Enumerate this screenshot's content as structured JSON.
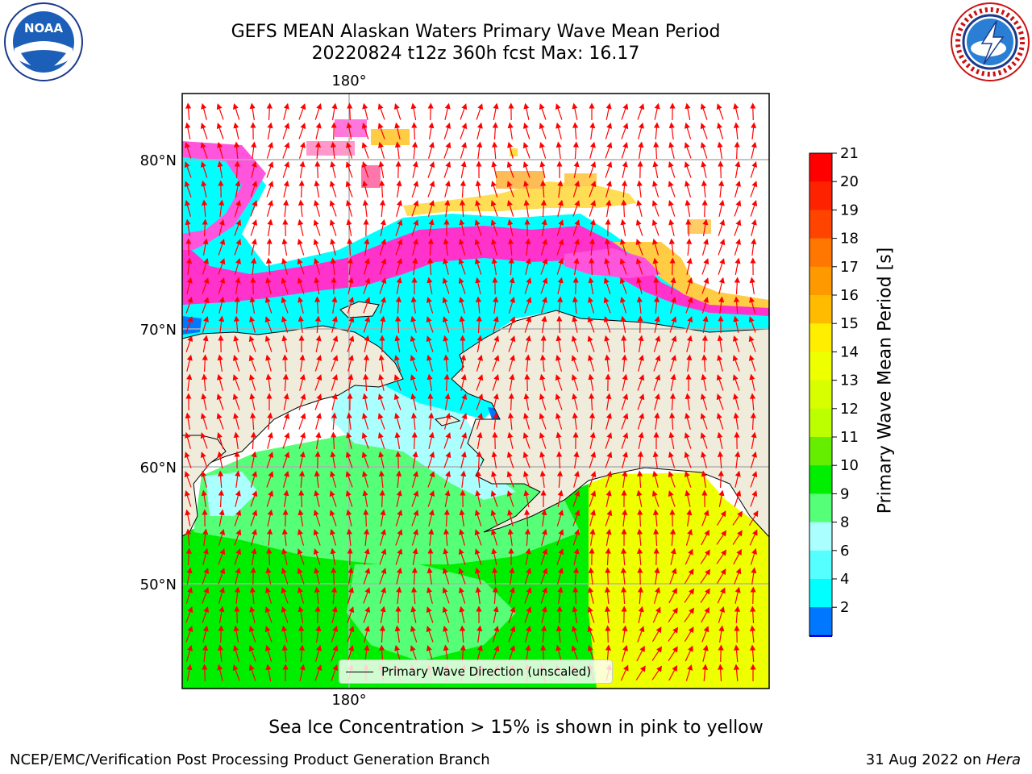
{
  "header": {
    "title_line1": "GEFS MEAN Alaskan Waters Primary Wave Mean Period",
    "title_line2": "20220824 t12z 360h fcst   Max: 16.17"
  },
  "logos": {
    "left": {
      "name": "noaa-logo",
      "text": "NOAA"
    },
    "right": {
      "name": "nws-logo",
      "text": "NATIONAL WEATHER SERVICE"
    }
  },
  "map": {
    "longitude_label_top": "180°",
    "longitude_label_bottom": "180°",
    "latitude_labels": [
      "80°N",
      "70°N",
      "60°N",
      "50°N"
    ],
    "legend_label": "Primary Wave Direction (unscaled)"
  },
  "colorbar": {
    "title": "Primary Wave Mean Period [s]",
    "ticks": [
      "21",
      "20",
      "19",
      "18",
      "17",
      "16",
      "15",
      "14",
      "13",
      "12",
      "11",
      "10",
      "9",
      "8",
      "6",
      "4",
      "2"
    ],
    "colors": [
      "#ff0000",
      "#ff2200",
      "#ff4400",
      "#ff7700",
      "#ff9900",
      "#ffbb00",
      "#ffee00",
      "#eeff00",
      "#d8ff00",
      "#bbff00",
      "#66ee00",
      "#00ee00",
      "#55ff77",
      "#aaffff",
      "#55ffff",
      "#00ffff",
      "#0077ff"
    ],
    "under_color": "#0000ff"
  },
  "footer": {
    "note": "Sea Ice Concentration > 15% is shown in pink to yellow",
    "credit_left": "NCEP/EMC/Verification Post Processing Product Generation Branch",
    "date": "31 Aug 2022 on ",
    "machine": "Hera"
  }
}
